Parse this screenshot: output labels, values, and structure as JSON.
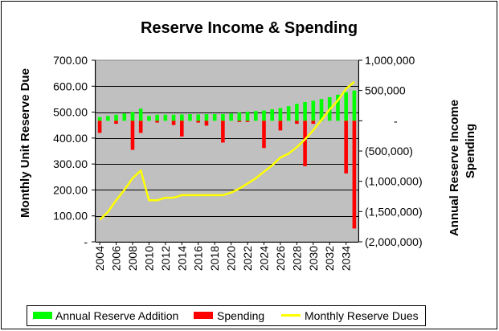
{
  "chart_data": {
    "type": "bar",
    "title": "Reserve Income & Spending",
    "ylabel_left": "Monthly Unit Reserve Due",
    "ylabel_right_line1": "Annual Reserve Income",
    "ylabel_right_line2": "Spending",
    "left_axis": {
      "ylim": [
        0,
        700
      ],
      "ticks": [
        0,
        100,
        200,
        300,
        400,
        500,
        600,
        700
      ],
      "tick_labels": [
        "-",
        "100.00",
        "200.00",
        "300.00",
        "400.00",
        "500.00",
        "600.00",
        "700.00"
      ]
    },
    "right_axis": {
      "ylim": [
        -2000000,
        1000000
      ],
      "ticks": [
        1000000,
        500000,
        0,
        -500000,
        -1000000,
        -1500000,
        -2000000
      ],
      "tick_labels": [
        "1,000,000",
        "500,000",
        "-",
        "(500,000)",
        "(1,000,000)",
        "(1,500,000)",
        "(2,000,000)"
      ]
    },
    "x": [
      2004,
      2005,
      2006,
      2007,
      2008,
      2009,
      2010,
      2011,
      2012,
      2013,
      2014,
      2015,
      2016,
      2017,
      2018,
      2019,
      2020,
      2021,
      2022,
      2023,
      2024,
      2025,
      2026,
      2027,
      2028,
      2029,
      2030,
      2031,
      2032,
      2033,
      2034,
      2035
    ],
    "x_tick_labels": [
      "2004",
      "2006",
      "2008",
      "2010",
      "2012",
      "2014",
      "2016",
      "2018",
      "2020",
      "2022",
      "2024",
      "2026",
      "2028",
      "2030",
      "2032",
      "2034"
    ],
    "x_tick_values": [
      2004,
      2006,
      2008,
      2010,
      2012,
      2014,
      2016,
      2018,
      2020,
      2022,
      2024,
      2026,
      2028,
      2030,
      2032,
      2034
    ],
    "series": [
      {
        "name": "Annual Reserve Addition",
        "axis": "right",
        "kind": "bar",
        "values": [
          60000,
          80000,
          100000,
          120000,
          145000,
          200000,
          80000,
          100000,
          100000,
          100000,
          105000,
          110000,
          105000,
          110000,
          110000,
          110000,
          120000,
          135000,
          150000,
          160000,
          170000,
          190000,
          210000,
          240000,
          280000,
          310000,
          330000,
          360000,
          390000,
          430000,
          470000,
          500000
        ]
      },
      {
        "name": "Spending",
        "axis": "right",
        "kind": "bar",
        "values": [
          -200000,
          0,
          -50000,
          0,
          -480000,
          -200000,
          0,
          -30000,
          0,
          -70000,
          -260000,
          0,
          -30000,
          -80000,
          0,
          -360000,
          0,
          -20000,
          -20000,
          0,
          -450000,
          0,
          -160000,
          0,
          -50000,
          -750000,
          -50000,
          0,
          0,
          0,
          -870000,
          -1780000
        ]
      },
      {
        "name": "Monthly Reserve Dues",
        "axis": "left",
        "kind": "line",
        "values": [
          85,
          115,
          160,
          200,
          245,
          275,
          160,
          160,
          170,
          170,
          180,
          180,
          180,
          180,
          180,
          180,
          190,
          205,
          225,
          245,
          270,
          295,
          325,
          340,
          365,
          395,
          430,
          470,
          510,
          545,
          590,
          617
        ]
      }
    ],
    "colors": {
      "addition": "#00ff00",
      "spending": "#ff0000",
      "dues": "#ffff00",
      "plot_bg": "#c0c0c0",
      "frame": "#000000"
    },
    "grid": true,
    "legend_position": "bottom"
  }
}
